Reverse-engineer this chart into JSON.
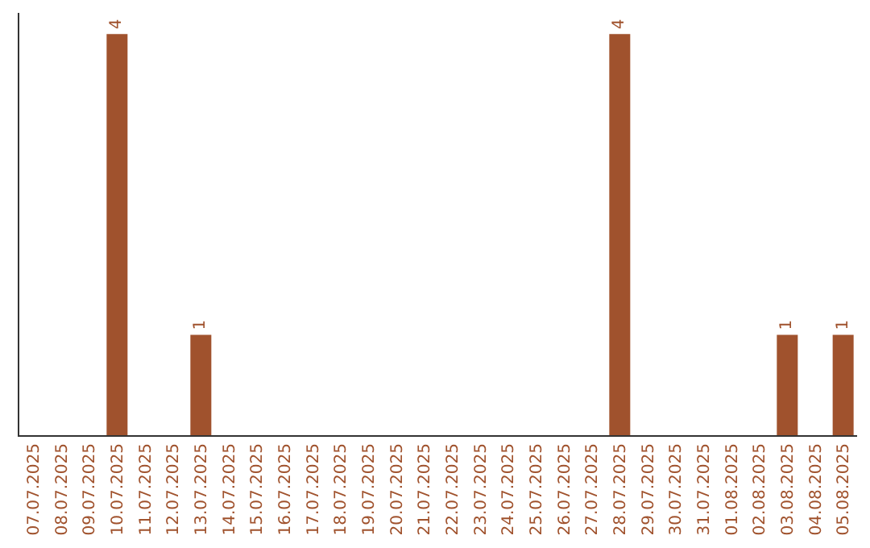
{
  "chart_data": {
    "type": "bar",
    "categories": [
      "07.07.2025",
      "08.07.2025",
      "09.07.2025",
      "10.07.2025",
      "11.07.2025",
      "12.07.2025",
      "13.07.2025",
      "14.07.2025",
      "15.07.2025",
      "16.07.2025",
      "17.07.2025",
      "18.07.2025",
      "19.07.2025",
      "20.07.2025",
      "21.07.2025",
      "22.07.2025",
      "23.07.2025",
      "24.07.2025",
      "25.07.2025",
      "26.07.2025",
      "27.07.2025",
      "28.07.2025",
      "29.07.2025",
      "30.07.2025",
      "31.07.2025",
      "01.08.2025",
      "02.08.2025",
      "03.08.2025",
      "04.08.2025",
      "05.08.2025"
    ],
    "values": [
      0,
      0,
      0,
      4,
      0,
      0,
      1,
      0,
      0,
      0,
      0,
      0,
      0,
      0,
      0,
      0,
      0,
      0,
      0,
      0,
      0,
      4,
      0,
      0,
      0,
      0,
      0,
      1,
      0,
      1
    ],
    "value_labels": [
      null,
      null,
      null,
      "4",
      null,
      null,
      "1",
      null,
      null,
      null,
      null,
      null,
      null,
      null,
      null,
      null,
      null,
      null,
      null,
      null,
      null,
      "4",
      null,
      null,
      null,
      null,
      null,
      "1",
      null,
      "1"
    ],
    "color": "#a0522d",
    "grid": false,
    "legend": false
  }
}
